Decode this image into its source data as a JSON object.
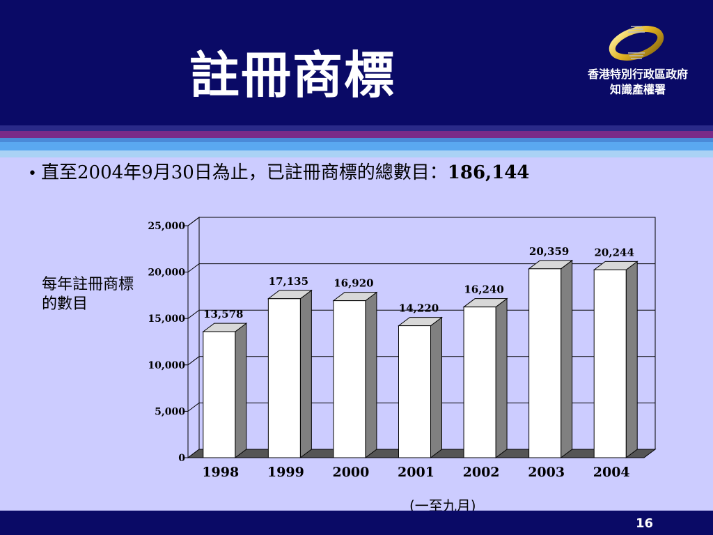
{
  "slide": {
    "title": "註冊商標",
    "logo_line1": "香港特別行政區政府",
    "logo_line2": "知識產權署",
    "bullet_symbol": "•",
    "bullet_text": "直至2004年9月30日為止，已註冊商標的總數目：",
    "bullet_total": "186,144",
    "footnote": "(一至九月)",
    "page_number": "16"
  },
  "colors": {
    "header_bg": "#0a0a66",
    "page_bg": "#ccccff",
    "bar_front": "#ffffff",
    "bar_side": "#808080",
    "bar_top": "#d8d8d8"
  },
  "chart_data": {
    "type": "bar",
    "title": "",
    "xlabel": "",
    "ylabel": "每年註冊商標的數目",
    "categories": [
      "1998",
      "1999",
      "2000",
      "2001",
      "2002",
      "2003",
      "2004"
    ],
    "values": [
      13578,
      17135,
      16920,
      14220,
      16240,
      20359,
      20244
    ],
    "value_labels": [
      "13,578",
      "17,135",
      "16,920",
      "14,220",
      "16,240",
      "20,359",
      "20,244"
    ],
    "ylim": [
      0,
      25000
    ],
    "yticks": [
      0,
      5000,
      10000,
      15000,
      20000,
      25000
    ],
    "ytick_labels": [
      "0",
      "5,000",
      "10,000",
      "15,000",
      "20,000",
      "25,000"
    ],
    "grid": true,
    "legend": "none",
    "style": "3d"
  }
}
